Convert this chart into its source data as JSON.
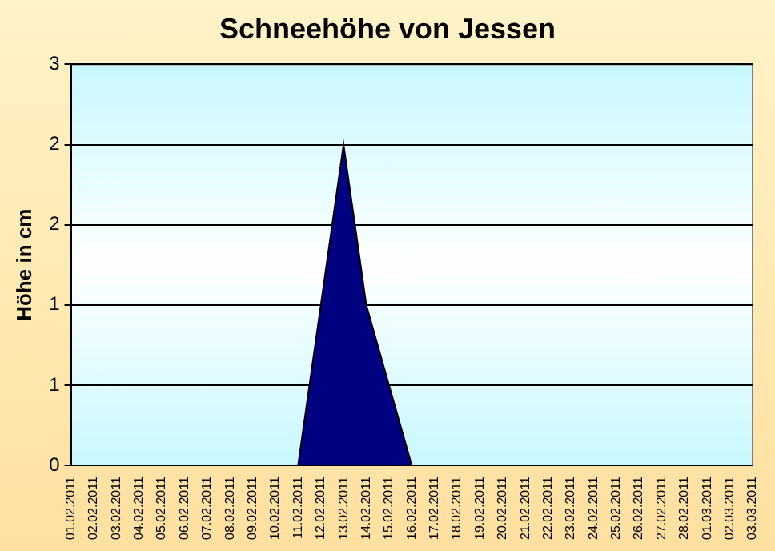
{
  "chart_data": {
    "type": "area",
    "title": "Schneehöhe von Jessen",
    "ylabel": "Höhe in cm",
    "categories": [
      "01.02.2011",
      "02.02.2011",
      "03.02.2011",
      "04.02.2011",
      "05.02.2011",
      "06.02.2011",
      "07.02.2011",
      "08.02.2011",
      "09.02.2011",
      "10.02.2011",
      "11.02.2011",
      "12.02.2011",
      "13.02.2011",
      "14.02.2011",
      "15.02.2011",
      "16.02.2011",
      "17.02.2011",
      "18.02.2011",
      "19.02.2011",
      "20.02.2011",
      "21.02.2011",
      "22.02.2011",
      "23.02.2011",
      "24.02.2011",
      "25.02.2011",
      "26.02.2011",
      "27.02.2011",
      "28.02.2011",
      "01.03.2011",
      "02.03.2011",
      "03.03.2011"
    ],
    "series": [
      {
        "color": "#000080",
        "values": [
          0,
          0,
          0,
          0,
          0,
          0,
          0,
          0,
          0,
          0,
          0,
          1,
          2,
          1,
          0.5,
          0,
          0,
          0,
          0,
          0,
          0,
          0,
          0,
          0,
          0,
          0,
          0,
          0,
          0,
          0,
          0
        ]
      }
    ],
    "ylim": [
      0,
      2.5
    ],
    "yticks": [
      0,
      {
        "value": 0.5,
        "label": "1"
      },
      1,
      {
        "value": 1.5,
        "label": "2"
      },
      2,
      {
        "value": 2.5,
        "label": "3"
      }
    ],
    "grid": "y",
    "legend": false
  }
}
